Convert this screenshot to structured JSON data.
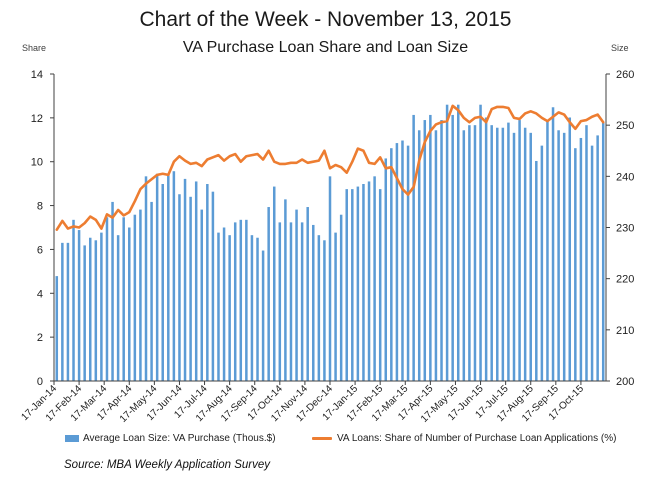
{
  "header": {
    "title": "Chart of the Week - November 13, 2015",
    "subtitle": "VA Purchase Loan Share and Loan Size"
  },
  "axes": {
    "left_title": "Share",
    "right_title": "Size"
  },
  "source": "Source:  MBA Weekly Application Survey",
  "colors": {
    "bars": "#5b9bd5",
    "line": "#ed7d31",
    "axis": "#404040"
  },
  "chart_data": {
    "type": "bar+line",
    "title": "VA Purchase Loan Share and Loan Size",
    "x_tick_labels": [
      "17-Jan-14",
      "17-Feb-14",
      "17-Mar-14",
      "17-Apr-14",
      "17-May-14",
      "17-Jun-14",
      "17-Jul-14",
      "17-Aug-14",
      "17-Sep-14",
      "17-Oct-14",
      "17-Nov-14",
      "17-Dec-14",
      "17-Jan-15",
      "17-Feb-15",
      "17-Mar-15",
      "17-Apr-15",
      "17-May-15",
      "17-Jun-15",
      "17-Jul-15",
      "17-Aug-15",
      "17-Sep-15",
      "17-Oct-15"
    ],
    "left_axis": {
      "label": "Share",
      "min": 0,
      "max": 14,
      "ticks": [
        0,
        2,
        4,
        6,
        8,
        10,
        12,
        14
      ]
    },
    "right_axis": {
      "label": "Size",
      "min": 200,
      "max": 260,
      "ticks": [
        200,
        210,
        220,
        230,
        240,
        250,
        260
      ]
    },
    "legend_position": "bottom",
    "grid": false,
    "series": [
      {
        "name": "Average Loan Size: VA Purchase (Thous.$)",
        "kind": "bar",
        "axis": "right",
        "values": [
          220.5,
          227.0,
          227.0,
          231.5,
          229.5,
          226.5,
          228.0,
          227.5,
          229.0,
          232.0,
          235.0,
          228.5,
          232.0,
          230.0,
          232.5,
          233.5,
          240.0,
          235.0,
          240.5,
          238.5,
          240.5,
          241.0,
          236.5,
          239.5,
          236.0,
          239.0,
          233.5,
          238.5,
          237.0,
          229.0,
          230.0,
          228.5,
          231.0,
          231.5,
          231.5,
          228.5,
          228.0,
          225.5,
          234.0,
          238.0,
          231.0,
          235.5,
          231.0,
          233.5,
          231.0,
          234.0,
          230.5,
          228.5,
          227.5,
          240.0,
          229.0,
          232.5,
          237.5,
          237.5,
          238.0,
          238.5,
          239.0,
          240.0,
          237.5,
          243.5,
          245.5,
          246.5,
          247.0,
          246.0,
          252.0,
          249.0,
          251.0,
          252.0,
          249.0,
          251.0,
          254.0,
          252.0,
          254.0,
          249.0,
          250.0,
          250.0,
          254.0,
          251.5,
          250.0,
          249.5,
          249.5,
          250.5,
          248.5,
          251.0,
          249.5,
          248.5,
          243.0,
          246.0,
          251.0,
          253.5,
          249.0,
          248.5,
          251.5,
          245.5,
          247.5,
          250.0,
          246.0,
          248.0,
          250.5
        ]
      },
      {
        "name": "VA Loans: Share of Number of Purchase Loan Applications (%)",
        "kind": "line",
        "axis": "left",
        "values": [
          6.9,
          7.3,
          6.95,
          7.05,
          7.0,
          7.2,
          7.5,
          7.35,
          6.95,
          7.6,
          7.45,
          7.8,
          7.55,
          7.7,
          8.2,
          8.75,
          9.0,
          9.2,
          9.4,
          9.45,
          9.4,
          10.0,
          10.25,
          10.05,
          9.9,
          9.95,
          9.8,
          10.1,
          10.2,
          10.3,
          10.05,
          10.25,
          10.35,
          10.0,
          10.25,
          10.3,
          10.35,
          10.1,
          10.5,
          10.0,
          9.9,
          9.9,
          9.95,
          9.95,
          10.1,
          9.95,
          10.0,
          10.05,
          10.5,
          9.7,
          9.85,
          9.75,
          9.5,
          10.0,
          10.6,
          10.5,
          9.95,
          9.9,
          10.2,
          9.7,
          9.75,
          9.25,
          8.75,
          8.5,
          8.85,
          10.05,
          10.9,
          11.4,
          11.7,
          11.8,
          11.85,
          12.55,
          12.35,
          12.0,
          11.8,
          12.0,
          12.05,
          11.8,
          12.4,
          12.5,
          12.5,
          12.45,
          12.0,
          11.95,
          12.2,
          12.3,
          12.2,
          12.0,
          11.85,
          12.05,
          12.25,
          12.15,
          11.8,
          11.5,
          11.85,
          11.9,
          12.05,
          12.15,
          11.8
        ]
      }
    ]
  }
}
